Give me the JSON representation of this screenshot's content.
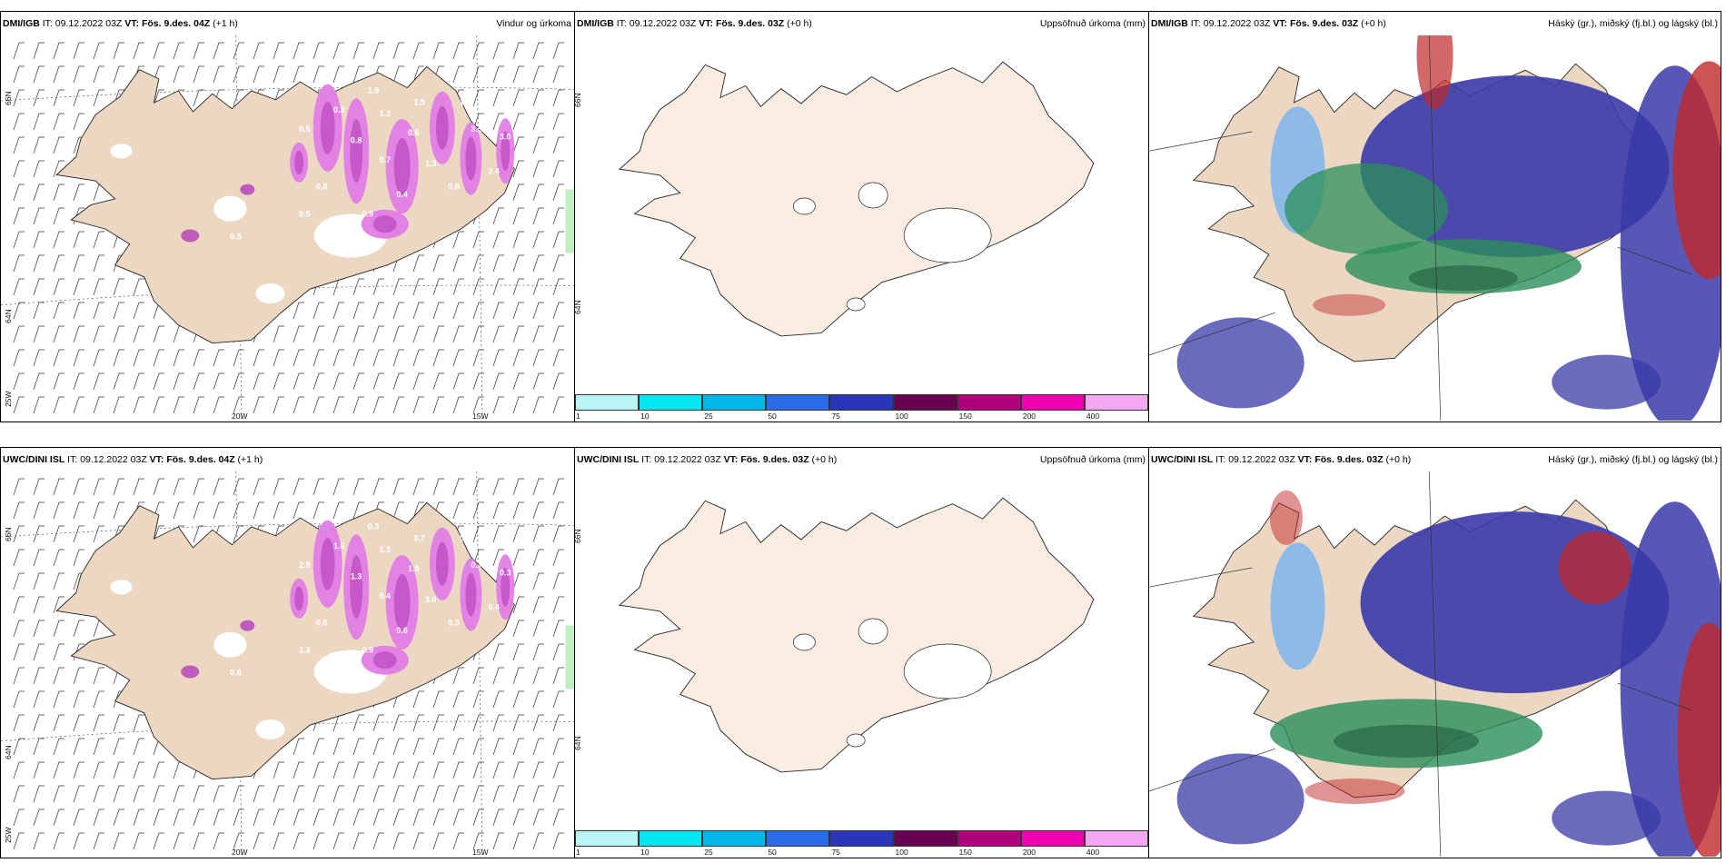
{
  "panels": [
    {
      "id": "tl",
      "model": "DMI/IGB",
      "it_label": "IT:",
      "it_value": "09.12.2022 03Z",
      "vt_label": "VT:",
      "vt_value": "Fös. 9.des. 04Z",
      "offset": "(+1 h)",
      "product": "Vindur og úrkoma",
      "lat_labels": [
        "66N",
        "64N",
        "25W"
      ],
      "lon_labels": [
        "20W",
        "15W"
      ],
      "precip_labels": [
        "1.9",
        "1.3",
        "1.5",
        "1.3",
        "0.3",
        "0.8",
        "0.6",
        "0.5",
        "3.5",
        "3.0",
        "1.3",
        "0.7",
        "2.4",
        "0.4",
        "0.9",
        "0.5",
        "0.8",
        "0.5",
        "0.8"
      ]
    },
    {
      "id": "tm",
      "model": "DMI/IGB",
      "it_label": "IT:",
      "it_value": "09.12.2022 03Z",
      "vt_label": "VT:",
      "vt_value": "Fös. 9.des. 03Z",
      "offset": "(+0 h)",
      "product": "Uppsöfnuð úrkoma (mm)",
      "lat_labels": [
        "66N",
        "64N"
      ]
    },
    {
      "id": "tr",
      "model": "DMI/IGB",
      "it_label": "IT:",
      "it_value": "09.12.2022 03Z",
      "vt_label": "VT:",
      "vt_value": "Fös. 9.des. 03Z",
      "offset": "(+0 h)",
      "product": "Háský (gr.), miðský (fj.bl.) og lágský (bl.)"
    },
    {
      "id": "bl",
      "model": "UWC/DINI ISL",
      "it_label": "IT:",
      "it_value": "09.12.2022 03Z",
      "vt_label": "VT:",
      "vt_value": "Fös. 9.des. 04Z",
      "offset": "(+1 h)",
      "product": "",
      "lat_labels": [
        "66N",
        "64N",
        "25W"
      ],
      "lon_labels": [
        "20W",
        "15W"
      ],
      "precip_labels": [
        "0.3",
        "1.1",
        "0.7",
        "0.6",
        "1.6",
        "1.3",
        "1.5",
        "2.9",
        "0.7",
        "0.3",
        "3.0",
        "0.4",
        "0.4",
        "0.6",
        "0.9",
        "1.3",
        "0.6",
        "0.6",
        "0.3"
      ]
    },
    {
      "id": "bm",
      "model": "UWC/DINI ISL",
      "it_label": "IT:",
      "it_value": "09.12.2022 03Z",
      "vt_label": "VT:",
      "vt_value": "Fös. 9.des. 03Z",
      "offset": "(+0 h)",
      "product": "Uppsöfnuð úrkoma (mm)",
      "lat_labels": [
        "66N",
        "64N"
      ]
    },
    {
      "id": "br",
      "model": "UWC/DINI ISL",
      "it_label": "IT:",
      "it_value": "09.12.2022 03Z",
      "vt_label": "VT:",
      "vt_value": "Fös. 9.des. 03Z",
      "offset": "(+0 h)",
      "product": "Háský (gr.), miðský (fj.bl.) og lágský (bl.)"
    }
  ],
  "precip_legend": {
    "ticks": [
      "1",
      "10",
      "25",
      "50",
      "75",
      "100",
      "150",
      "200",
      "400"
    ],
    "colors": [
      "#b8f6f6",
      "#00e8ee",
      "#00b8e8",
      "#2c6be6",
      "#2a36b8",
      "#6a0050",
      "#b0007e",
      "#f000b0",
      "#f4a6f0"
    ]
  },
  "colors": {
    "land": "#f9ece0",
    "land_shaded": "#ecd8c2",
    "snow_white": "#ffffff",
    "precip_pink": "#e27ee6",
    "precip_dark": "#b43cb8",
    "low_cloud": "#3a3aa8",
    "mid_cloud": "#2b8f5a",
    "high_cloud": "#c0282a",
    "light_blue": "#4fa7ff"
  }
}
